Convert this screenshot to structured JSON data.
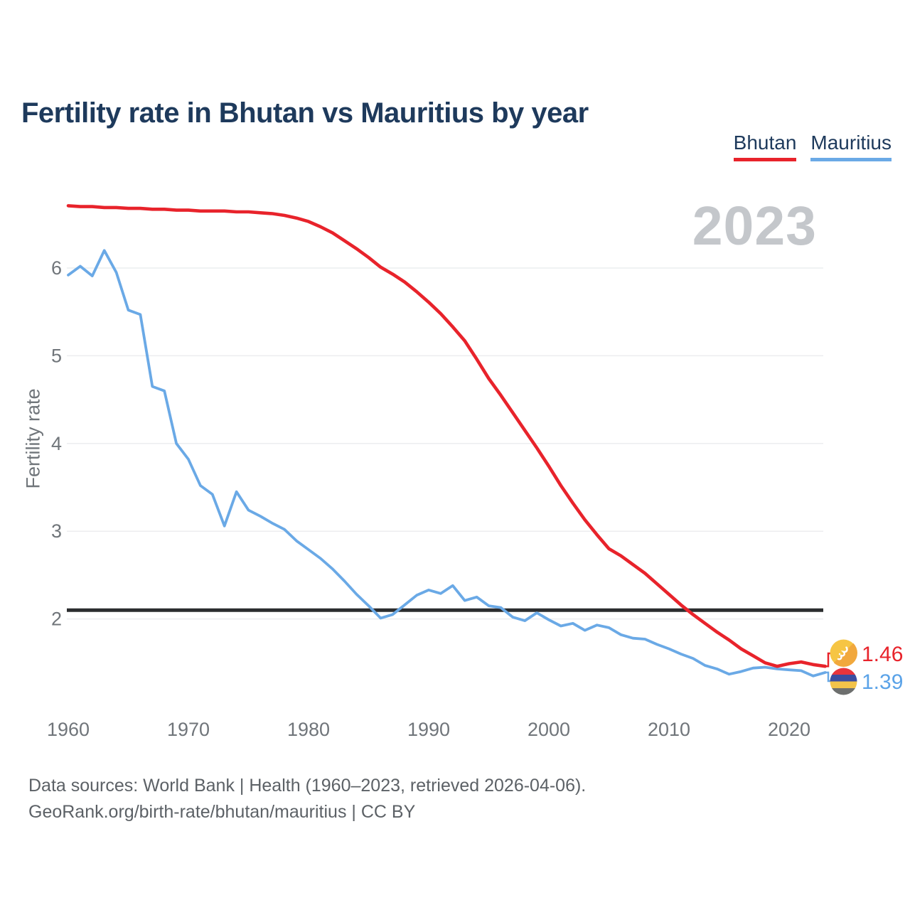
{
  "title": "Fertility rate in Bhutan vs Mauritius by year",
  "watermark": "2023",
  "legend": {
    "bhutan": {
      "label": "Bhutan",
      "color": "#e8232b"
    },
    "mauritius": {
      "label": "Mauritius",
      "color": "#6aa9e6"
    }
  },
  "end_labels": {
    "bhutan": {
      "value": "1.46",
      "color": "#e8232b",
      "flag": "bhutan-flag-icon"
    },
    "mauritius": {
      "value": "1.39",
      "color": "#5ba3e8",
      "flag": "mauritius-flag-icon"
    }
  },
  "footer": {
    "line1": "Data sources: World Bank | Health (1960–2023, retrieved 2026-04-06).",
    "line2": "GeoRank.org/birth-rate/bhutan/mauritius | CC BY"
  },
  "chart_data": {
    "type": "line",
    "title": "Fertility rate in Bhutan vs Mauritius by year",
    "xlabel": "",
    "ylabel": "Fertility rate",
    "x_ticks": [
      1960,
      1970,
      1980,
      1990,
      2000,
      2010,
      2020
    ],
    "y_ticks": [
      2,
      3,
      4,
      5,
      6
    ],
    "ylim": [
      1.2,
      6.85
    ],
    "xlim": [
      1960,
      2023
    ],
    "grid": "horizontal",
    "legend_position": "top-right",
    "reference_line": {
      "value": 2.1,
      "color": "#2b2d2f",
      "meaning": "replacement level"
    },
    "x": [
      1960,
      1961,
      1962,
      1963,
      1964,
      1965,
      1966,
      1967,
      1968,
      1969,
      1970,
      1971,
      1972,
      1973,
      1974,
      1975,
      1976,
      1977,
      1978,
      1979,
      1980,
      1981,
      1982,
      1983,
      1984,
      1985,
      1986,
      1987,
      1988,
      1989,
      1990,
      1991,
      1992,
      1993,
      1994,
      1995,
      1996,
      1997,
      1998,
      1999,
      2000,
      2001,
      2002,
      2003,
      2004,
      2005,
      2006,
      2007,
      2008,
      2009,
      2010,
      2011,
      2012,
      2013,
      2014,
      2015,
      2016,
      2017,
      2018,
      2019,
      2020,
      2021,
      2022,
      2023
    ],
    "series": [
      {
        "name": "Bhutan",
        "color": "#e8232b",
        "final_value": 1.46,
        "values": [
          6.71,
          6.7,
          6.7,
          6.69,
          6.69,
          6.68,
          6.68,
          6.67,
          6.67,
          6.66,
          6.66,
          6.65,
          6.65,
          6.65,
          6.64,
          6.64,
          6.63,
          6.62,
          6.6,
          6.57,
          6.53,
          6.47,
          6.4,
          6.31,
          6.22,
          6.12,
          6.01,
          5.93,
          5.84,
          5.73,
          5.61,
          5.48,
          5.33,
          5.17,
          4.96,
          4.74,
          4.55,
          4.35,
          4.15,
          3.95,
          3.74,
          3.52,
          3.32,
          3.13,
          2.96,
          2.8,
          2.72,
          2.62,
          2.52,
          2.4,
          2.28,
          2.16,
          2.05,
          1.95,
          1.85,
          1.76,
          1.66,
          1.58,
          1.5,
          1.46,
          1.49,
          1.51,
          1.48,
          1.46
        ]
      },
      {
        "name": "Mauritius",
        "color": "#6aa9e6",
        "final_value": 1.39,
        "values": [
          5.92,
          6.02,
          5.91,
          6.2,
          5.95,
          5.52,
          5.47,
          4.65,
          4.6,
          4.0,
          3.82,
          3.52,
          3.42,
          3.06,
          3.45,
          3.24,
          3.17,
          3.09,
          3.02,
          2.89,
          2.79,
          2.69,
          2.57,
          2.43,
          2.28,
          2.15,
          2.01,
          2.05,
          2.16,
          2.27,
          2.33,
          2.29,
          2.38,
          2.21,
          2.25,
          2.15,
          2.13,
          2.02,
          1.98,
          2.07,
          1.99,
          1.92,
          1.95,
          1.87,
          1.93,
          1.9,
          1.82,
          1.78,
          1.77,
          1.71,
          1.66,
          1.6,
          1.55,
          1.47,
          1.43,
          1.37,
          1.4,
          1.44,
          1.45,
          1.43,
          1.42,
          1.41,
          1.35,
          1.39
        ]
      }
    ]
  }
}
